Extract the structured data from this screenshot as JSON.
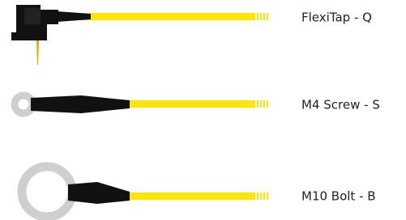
{
  "items": [
    {
      "label": "FlexiTap - Q"
    },
    {
      "label": "M4 Screw - S"
    },
    {
      "label": "M10 Bolt - B"
    }
  ]
}
